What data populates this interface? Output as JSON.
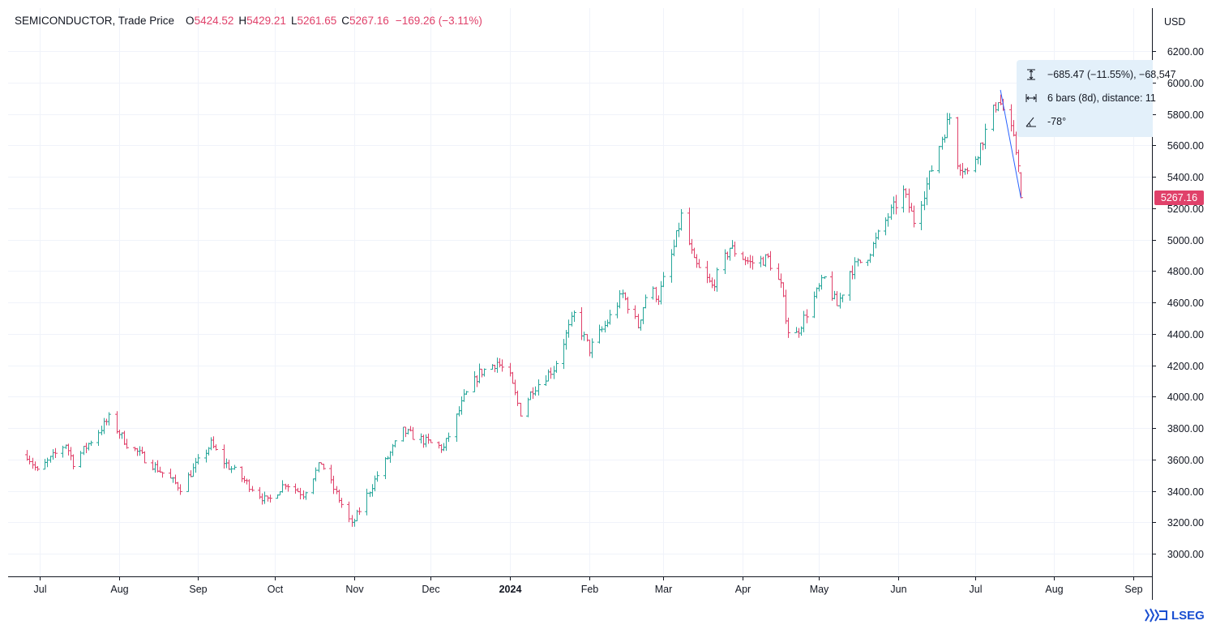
{
  "legend": {
    "symbol": "SEMICONDUCTOR, Trade Price",
    "open_key": "O",
    "open": "5424.52",
    "high_key": "H",
    "high": "5429.21",
    "low_key": "L",
    "low": "5261.65",
    "close_key": "C",
    "close": "5267.16",
    "change": "−169.26 (−3.11%)"
  },
  "currency": "USD",
  "last_price_label": "5267.16",
  "measure_tooltip": {
    "price_change": "−685.47 (−11.55%), −68,547",
    "bars": "6 bars (8d), distance: 11",
    "angle": "-78°"
  },
  "brand": "LSEG",
  "colors": {
    "up": "#26a69a",
    "down": "#e0416a",
    "measure": "#2962ff",
    "tooltip_bg": "#e3f0fa",
    "logo": "#1a4fd1"
  },
  "icons": [
    "price-range-icon",
    "bars-range-icon",
    "angle-icon",
    "lseg-logo-icon"
  ],
  "chart_data": {
    "type": "ohlc",
    "title": "SEMICONDUCTOR, Trade Price",
    "y_axis_position": "right",
    "ylim": [
      2850,
      6350
    ],
    "yticks": [
      "3000.00",
      "3200.00",
      "3400.00",
      "3600.00",
      "3800.00",
      "4000.00",
      "4200.00",
      "4400.00",
      "4600.00",
      "4800.00",
      "5000.00",
      "5200.00",
      "5400.00",
      "5600.00",
      "5800.00",
      "6000.00",
      "6200.00"
    ],
    "xticks": [
      "Jul",
      "Aug",
      "Sep",
      "Oct",
      "Nov",
      "Dec",
      "2024",
      "Feb",
      "Mar",
      "Apr",
      "May",
      "Jun",
      "Jul",
      "Aug",
      "Sep"
    ],
    "grid": true,
    "waypoints": [
      [
        "Jun 26",
        3630
      ],
      [
        "Jun 30",
        3520
      ],
      [
        "Jul 11",
        3700
      ],
      [
        "Jul 14",
        3580
      ],
      [
        "Jul 28",
        3860
      ],
      [
        "Aug 4",
        3700
      ],
      [
        "Aug 25",
        3420
      ],
      [
        "Sep 6",
        3700
      ],
      [
        "Sep 10",
        3600
      ],
      [
        "Sep 28",
        3330
      ],
      [
        "Oct 5",
        3450
      ],
      [
        "Oct 12",
        3380
      ],
      [
        "Oct 19",
        3580
      ],
      [
        "Oct 31",
        3180
      ],
      [
        "Nov 10",
        3500
      ],
      [
        "Nov 20",
        3780
      ],
      [
        "Nov 28",
        3720
      ],
      [
        "Dec 6",
        3670
      ],
      [
        "Dec 14",
        3990
      ],
      [
        "Dec 20",
        4150
      ],
      [
        "Dec 27",
        4220
      ],
      [
        "Jan 1",
        4120
      ],
      [
        "Jan 5",
        3900
      ],
      [
        "Jan 10",
        4050
      ],
      [
        "Jan 18",
        4180
      ],
      [
        "Jan 26",
        4520
      ],
      [
        "Feb 1",
        4300
      ],
      [
        "Feb 7",
        4450
      ],
      [
        "Feb 14",
        4650
      ],
      [
        "Feb 20",
        4450
      ],
      [
        "Feb 24",
        4700
      ],
      [
        "Feb 28",
        4630
      ],
      [
        "Mar 5",
        4950
      ],
      [
        "Mar 8",
        5150
      ],
      [
        "Mar 13",
        4850
      ],
      [
        "Mar 20",
        4700
      ],
      [
        "Mar 27",
        4950
      ],
      [
        "Apr 4",
        4850
      ],
      [
        "Apr 11",
        4880
      ],
      [
        "Apr 16",
        4700
      ],
      [
        "Apr 20",
        4330
      ],
      [
        "Apr 28",
        4600
      ],
      [
        "May 3",
        4750
      ],
      [
        "May 8",
        4580
      ],
      [
        "May 13",
        4800
      ],
      [
        "May 20",
        4900
      ],
      [
        "May 28",
        5150
      ],
      [
        "Jun 3",
        5300
      ],
      [
        "Jun 7",
        5120
      ],
      [
        "Jun 12",
        5350
      ],
      [
        "Jun 18",
        5650
      ],
      [
        "Jun 21",
        5780
      ],
      [
        "Jun 24",
        5500
      ],
      [
        "Jun 28",
        5420
      ],
      [
        "Jul 3",
        5600
      ],
      [
        "Jul 10",
        5900
      ],
      [
        "Jul 14",
        5750
      ],
      [
        "Jul 18",
        5500
      ],
      [
        "Jul 19",
        5424.52
      ]
    ],
    "last_bar": {
      "date": "Jul 19",
      "open": 5424.52,
      "high": 5429.21,
      "low": 5261.65,
      "close": 5267.16
    },
    "measure": {
      "from": [
        "Jul 11",
        5952.63
      ],
      "to": [
        "Jul 19",
        5267.16
      ]
    }
  }
}
